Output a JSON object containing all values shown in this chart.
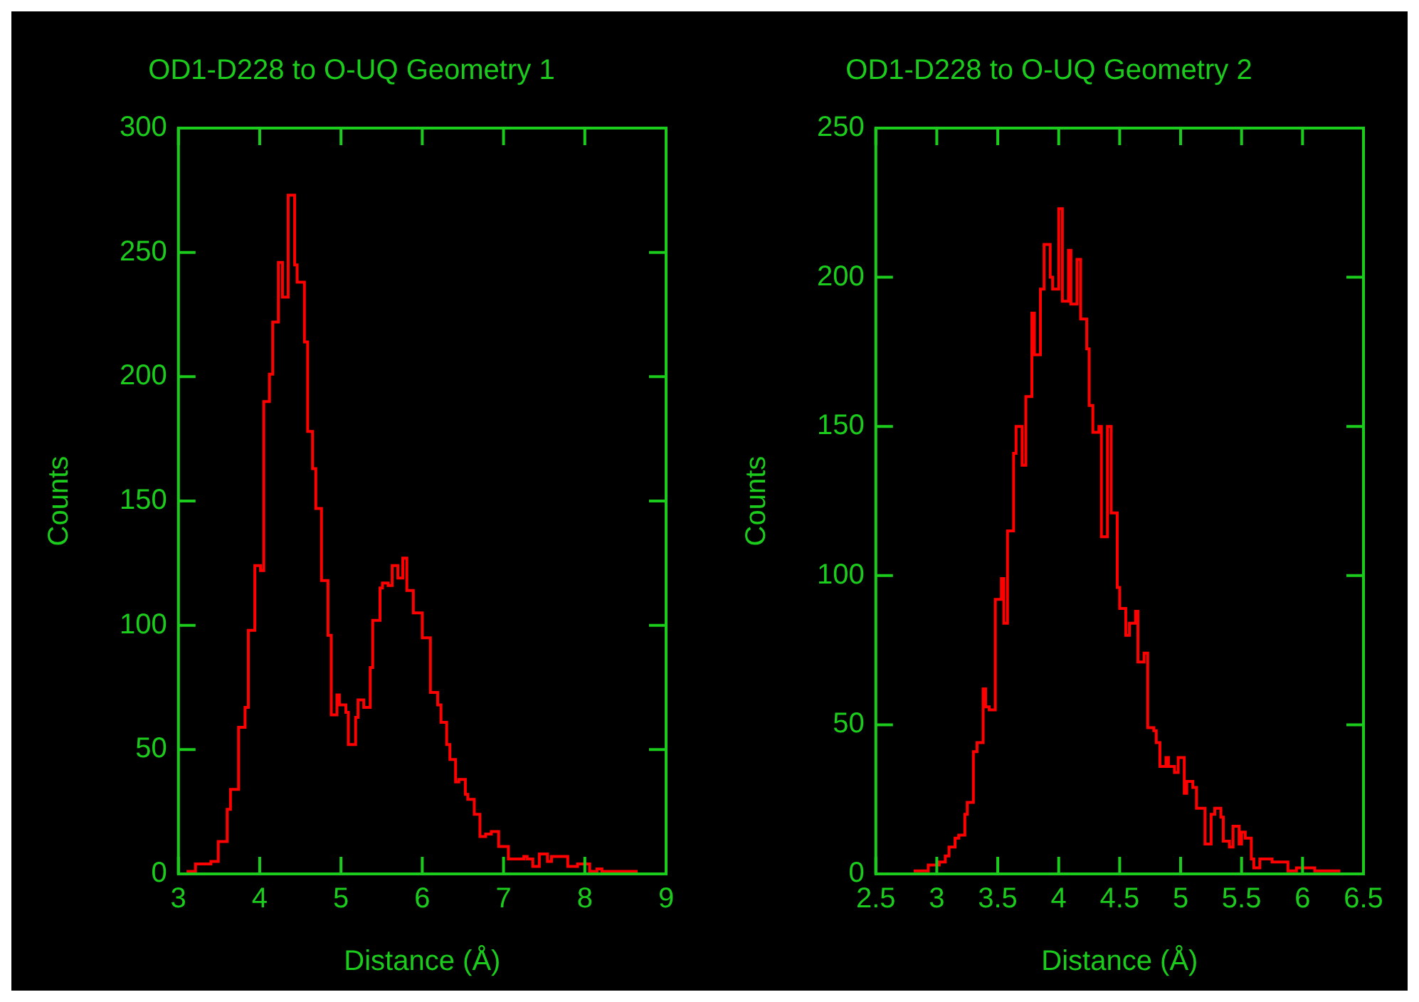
{
  "chart_data": [
    {
      "type": "histogram",
      "title": "OD1-D228 to O-UQ Geometry 1",
      "xlabel": "Distance (Å)",
      "ylabel": "Counts",
      "color": "#ff0000",
      "grid": false,
      "xlim": [
        3,
        9
      ],
      "xticks": [
        3,
        4,
        5,
        6,
        7,
        8,
        9
      ],
      "ylim": [
        0,
        300
      ],
      "yticks": [
        0,
        50,
        100,
        150,
        200,
        250,
        300
      ],
      "bins": [
        3.1,
        3.21,
        3.4,
        3.49,
        3.6,
        3.64,
        3.74,
        3.82,
        3.86,
        3.94,
        4.01,
        4.05,
        4.12,
        4.16,
        4.23,
        4.28,
        4.35,
        4.43,
        4.46,
        4.55,
        4.59,
        4.65,
        4.69,
        4.76,
        4.84,
        4.88,
        4.95,
        4.98,
        5.06,
        5.09,
        5.18,
        5.21,
        5.28,
        5.36,
        5.39,
        5.48,
        5.51,
        5.58,
        5.63,
        5.7,
        5.76,
        5.81,
        5.89,
        6.0,
        6.1,
        6.19,
        6.23,
        6.3,
        6.34,
        6.41,
        6.45,
        6.53,
        6.56,
        6.64,
        6.71,
        6.78,
        6.85,
        6.94,
        7.06,
        7.25,
        7.29,
        7.36,
        7.44,
        7.54,
        7.59,
        7.79,
        7.91,
        8.06,
        8.15,
        8.21,
        8.65
      ],
      "values": [
        1,
        4,
        5,
        13,
        26,
        34,
        59,
        67,
        98,
        124,
        122,
        190,
        201,
        222,
        246,
        232,
        273,
        245,
        238,
        214,
        178,
        163,
        147,
        118,
        96,
        64,
        72,
        68,
        65,
        52,
        63,
        70,
        67,
        83,
        102,
        115,
        117,
        116,
        124,
        119,
        127,
        114,
        105,
        95,
        73,
        68,
        61,
        52,
        46,
        37,
        38,
        32,
        30,
        24,
        15,
        16,
        17,
        11,
        6,
        7,
        6,
        3,
        8,
        5,
        7,
        3,
        4,
        1,
        2,
        1
      ]
    },
    {
      "type": "histogram",
      "title": "OD1-D228 to O-UQ Geometry 2",
      "xlabel": "Distance (Å)",
      "ylabel": "Counts",
      "color": "#ff0000",
      "grid": false,
      "xlim": [
        2.5,
        6.5
      ],
      "xticks": [
        2.5,
        3,
        3.5,
        4,
        4.5,
        5,
        5.5,
        6,
        6.5
      ],
      "ylim": [
        0,
        250
      ],
      "yticks": [
        0,
        50,
        100,
        150,
        200,
        250
      ],
      "bins": [
        2.81,
        2.93,
        2.98,
        3.02,
        3.07,
        3.1,
        3.15,
        3.18,
        3.23,
        3.25,
        3.3,
        3.33,
        3.38,
        3.4,
        3.43,
        3.48,
        3.53,
        3.55,
        3.58,
        3.63,
        3.65,
        3.7,
        3.73,
        3.78,
        3.8,
        3.85,
        3.88,
        3.93,
        3.95,
        4.0,
        4.03,
        4.08,
        4.1,
        4.15,
        4.18,
        4.23,
        4.25,
        4.28,
        4.33,
        4.35,
        4.4,
        4.43,
        4.48,
        4.5,
        4.55,
        4.58,
        4.63,
        4.65,
        4.7,
        4.73,
        4.78,
        4.8,
        4.83,
        4.88,
        4.9,
        4.95,
        4.98,
        5.03,
        5.05,
        5.1,
        5.13,
        5.2,
        5.25,
        5.28,
        5.33,
        5.35,
        5.4,
        5.43,
        5.48,
        5.5,
        5.53,
        5.58,
        5.6,
        5.65,
        5.75,
        5.8,
        5.88,
        5.95,
        6.0,
        6.1,
        6.31
      ],
      "values": [
        1,
        3,
        3,
        4,
        6,
        9,
        12,
        13,
        20,
        24,
        41,
        44,
        62,
        56,
        55,
        92,
        99,
        84,
        115,
        141,
        150,
        137,
        160,
        188,
        174,
        196,
        211,
        200,
        196,
        223,
        192,
        209,
        191,
        206,
        186,
        176,
        157,
        148,
        150,
        113,
        150,
        121,
        96,
        89,
        80,
        84,
        88,
        71,
        74,
        49,
        48,
        44,
        36,
        39,
        36,
        34,
        39,
        27,
        31,
        29,
        22,
        10,
        20,
        22,
        19,
        11,
        9,
        16,
        10,
        14,
        12,
        5,
        2,
        5,
        4,
        4,
        1,
        2,
        2,
        1
      ]
    }
  ]
}
